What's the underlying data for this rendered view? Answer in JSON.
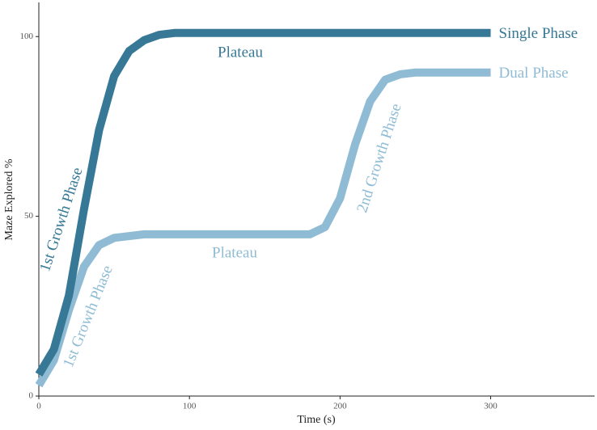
{
  "chart_data": {
    "type": "line",
    "x_label": "Time (s)",
    "y_label": "Maze Explored %",
    "x": [
      0,
      10,
      20,
      30,
      40,
      50,
      60,
      70,
      80,
      90,
      100,
      110,
      120,
      130,
      140,
      150,
      160,
      170,
      180,
      190,
      200,
      210,
      220,
      230,
      240,
      250,
      260,
      270,
      280,
      290,
      300
    ],
    "series": [
      {
        "name": "Single Phase",
        "color": "#367896",
        "values": [
          6,
          13,
          28,
          52,
          74,
          89,
          96,
          99,
          100.5,
          101,
          101,
          101,
          101,
          101,
          101,
          101,
          101,
          101,
          101,
          101,
          101,
          101,
          101,
          101,
          101,
          101,
          101,
          101,
          101,
          101,
          101
        ]
      },
      {
        "name": "Dual Phase",
        "color": "#8fbcd4",
        "values": [
          3,
          10,
          24,
          36,
          42,
          44,
          44.5,
          45,
          45,
          45,
          45,
          45,
          45,
          45,
          45,
          45,
          45,
          45,
          45,
          47,
          55,
          70,
          82,
          88,
          89.5,
          90,
          90,
          90,
          90,
          90,
          90
        ]
      }
    ],
    "annotations": [
      {
        "text": "Plateau",
        "series": 0
      },
      {
        "text": "1st Growth Phase",
        "series": 0
      },
      {
        "text": "1st Growth Phase",
        "series": 1
      },
      {
        "text": "Plateau",
        "series": 1
      },
      {
        "text": "2nd Growth Phase",
        "series": 1
      }
    ],
    "xlim": [
      0,
      369
    ],
    "ylim": [
      0,
      109.5
    ],
    "xticks": [
      0,
      100,
      200,
      300
    ],
    "yticks": [
      0,
      50,
      100
    ],
    "grid": false
  }
}
